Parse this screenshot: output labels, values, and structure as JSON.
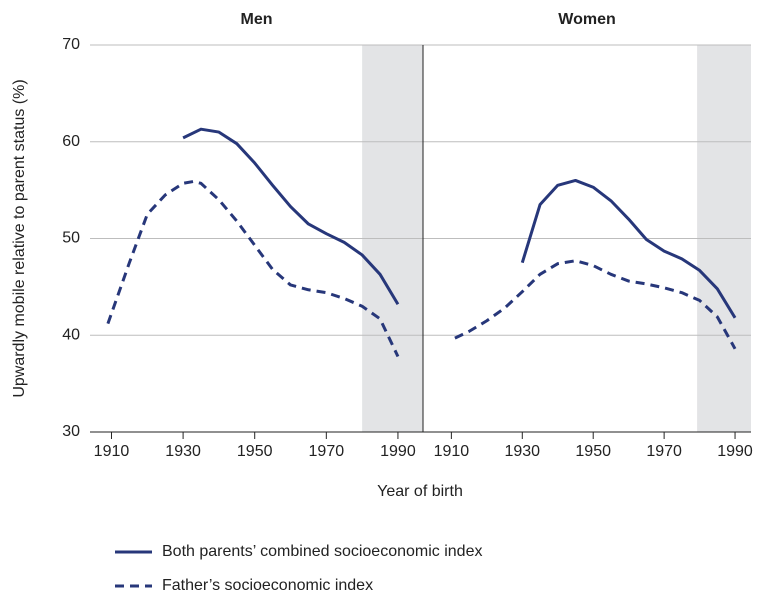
{
  "chart_data": [
    {
      "type": "line",
      "title": "Men",
      "ylabel": "Upwardly mobile relative to parent status (%)",
      "xlabel": "Year of birth",
      "xlim": [
        1904,
        1997
      ],
      "xticks": [
        1910,
        1930,
        1950,
        1970,
        1990
      ],
      "ylim": [
        30,
        70
      ],
      "yticks": [
        30,
        40,
        50,
        60,
        70
      ],
      "grid": true,
      "shade_x": [
        1980,
        1997
      ],
      "series": [
        {
          "name": "Both parents’ combined socioeconomic index",
          "color": "#27377a",
          "dash": false,
          "x": [
            1930,
            1935,
            1940,
            1945,
            1950,
            1955,
            1960,
            1965,
            1970,
            1975,
            1980,
            1985,
            1990
          ],
          "values": [
            60.4,
            61.3,
            61,
            59.8,
            57.8,
            55.5,
            53.3,
            51.5,
            50.5,
            49.6,
            48.3,
            46.3,
            43.2
          ]
        },
        {
          "name": "Father’s socioeconomic index",
          "color": "#27377a",
          "dash": true,
          "x": [
            1909,
            1915,
            1920,
            1925,
            1930,
            1933,
            1935,
            1940,
            1945,
            1950,
            1955,
            1960,
            1965,
            1970,
            1975,
            1980,
            1985,
            1990
          ],
          "values": [
            41.2,
            47.5,
            52.5,
            54.5,
            55.7,
            55.9,
            55.7,
            54,
            51.8,
            49.3,
            46.8,
            45.2,
            44.7,
            44.4,
            43.8,
            43,
            41.7,
            37.8
          ]
        }
      ]
    },
    {
      "type": "line",
      "title": "Women",
      "xlim": [
        1902,
        1994.5
      ],
      "xticks": [
        1910,
        1930,
        1950,
        1970,
        1990
      ],
      "ylim": [
        30,
        70
      ],
      "yticks": [
        30,
        40,
        50,
        60,
        70
      ],
      "grid": true,
      "shade_x": [
        1979.3,
        1994.5
      ],
      "series": [
        {
          "color": "#27377a",
          "dash": false,
          "x": [
            1930,
            1935,
            1940,
            1945,
            1950,
            1955,
            1960,
            1965,
            1970,
            1975,
            1980,
            1985,
            1990
          ],
          "values": [
            47.5,
            53.5,
            55.5,
            56,
            55.3,
            53.9,
            52,
            49.9,
            48.7,
            47.9,
            46.7,
            44.8,
            41.8
          ]
        },
        {
          "color": "#27377a",
          "dash": true,
          "x": [
            1911,
            1915,
            1920,
            1925,
            1930,
            1935,
            1940,
            1945,
            1950,
            1955,
            1960,
            1965,
            1970,
            1975,
            1980,
            1985,
            1990
          ],
          "values": [
            39.7,
            40.4,
            41.5,
            42.8,
            44.5,
            46.3,
            47.4,
            47.7,
            47.2,
            46.3,
            45.6,
            45.3,
            44.9,
            44.4,
            43.6,
            41.9,
            38.6
          ]
        }
      ]
    }
  ]
}
